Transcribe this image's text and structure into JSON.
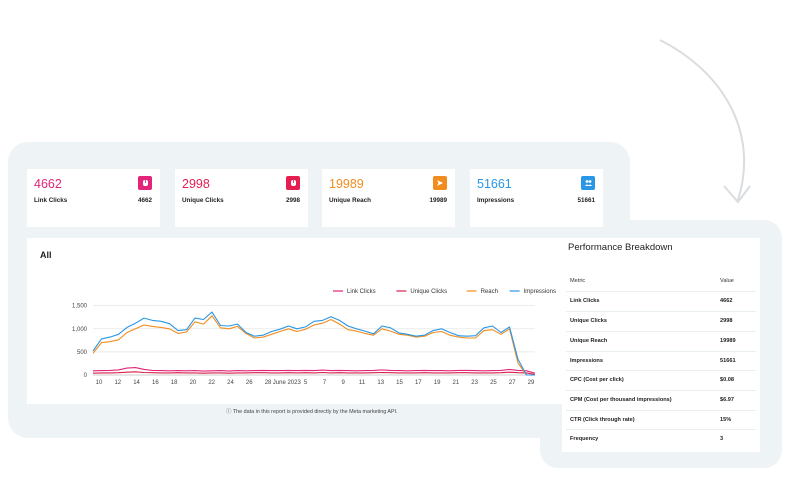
{
  "kpis": [
    {
      "value": "4662",
      "label": "Link Clicks",
      "count": "4662",
      "color": "#e2257a",
      "icon": "cursor-icon"
    },
    {
      "value": "2998",
      "label": "Unique Clicks",
      "count": "2998",
      "color": "#e51e4f",
      "icon": "cursor-icon"
    },
    {
      "value": "19989",
      "label": "Unique Reach",
      "count": "19989",
      "color": "#f28c1e",
      "icon": "send-icon"
    },
    {
      "value": "51661",
      "label": "Impressions",
      "count": "51661",
      "color": "#2996e6",
      "icon": "people-icon"
    }
  ],
  "chart": {
    "title": "All",
    "footnote": "The data in this report is provided directly by the Meta marketing API."
  },
  "chart_data": {
    "type": "line",
    "x_tick_labels": [
      "10",
      "12",
      "14",
      "16",
      "18",
      "20",
      "22",
      "24",
      "26",
      "28",
      "June 2023",
      "5",
      "7",
      "9",
      "11",
      "13",
      "15",
      "17",
      "19",
      "21",
      "23",
      "25",
      "27",
      "29"
    ],
    "y_ticks": [
      "0",
      "500",
      "1,000",
      "1,500"
    ],
    "ylim": [
      0,
      1600
    ],
    "grid": true,
    "legend_position": "top-right",
    "series": [
      {
        "name": "Link Clicks",
        "color": "#e2257a",
        "values": [
          90,
          95,
          100,
          110,
          150,
          160,
          120,
          100,
          95,
          90,
          95,
          90,
          95,
          85,
          90,
          95,
          85,
          95,
          90,
          95,
          100,
          95,
          95,
          100,
          95,
          100,
          95,
          105,
          95,
          100,
          95,
          90,
          95,
          100,
          110,
          100,
          95,
          90,
          95,
          100,
          95,
          95,
          90,
          100,
          100,
          95,
          90,
          95,
          100,
          120,
          100,
          90,
          40
        ]
      },
      {
        "name": "Unique Clicks",
        "color": "#d81f4a",
        "values": [
          40,
          45,
          45,
          50,
          60,
          70,
          55,
          50,
          45,
          45,
          50,
          45,
          45,
          40,
          45,
          45,
          40,
          45,
          45,
          50,
          50,
          45,
          45,
          50,
          45,
          50,
          45,
          55,
          45,
          50,
          45,
          45,
          45,
          50,
          55,
          50,
          45,
          45,
          45,
          50,
          45,
          45,
          45,
          50,
          50,
          45,
          45,
          45,
          50,
          60,
          50,
          45,
          10
        ]
      },
      {
        "name": "Reach",
        "color": "#f28c1e",
        "values": [
          470,
          700,
          720,
          760,
          920,
          1000,
          1080,
          1050,
          1030,
          1000,
          900,
          930,
          1150,
          1100,
          1280,
          1020,
          1000,
          1050,
          900,
          800,
          820,
          880,
          940,
          1000,
          940,
          990,
          1080,
          1120,
          1200,
          1100,
          980,
          950,
          900,
          860,
          1000,
          950,
          880,
          860,
          820,
          840,
          920,
          940,
          860,
          820,
          800,
          800,
          960,
          980,
          880,
          1000,
          260,
          0,
          0
        ]
      },
      {
        "name": "Impressions",
        "color": "#2996e6",
        "values": [
          520,
          780,
          820,
          880,
          1030,
          1120,
          1230,
          1180,
          1160,
          1110,
          960,
          980,
          1230,
          1200,
          1360,
          1070,
          1060,
          1100,
          920,
          840,
          860,
          940,
          990,
          1060,
          1000,
          1040,
          1160,
          1180,
          1260,
          1180,
          1060,
          1000,
          950,
          890,
          1060,
          1020,
          910,
          880,
          840,
          860,
          960,
          1000,
          920,
          850,
          840,
          850,
          1020,
          1060,
          920,
          1040,
          340,
          0,
          0
        ]
      }
    ]
  },
  "breakdown": {
    "title": "Performance Breakdown",
    "headers": {
      "metric": "Metric",
      "value": "Value"
    },
    "rows": [
      {
        "metric": "Link Clicks",
        "value": "4662"
      },
      {
        "metric": "Unique Clicks",
        "value": "2998"
      },
      {
        "metric": "Unique Reach",
        "value": "19989"
      },
      {
        "metric": "Impressions",
        "value": "51661"
      },
      {
        "metric": "CPC (Cost per click)",
        "value": "$0.08"
      },
      {
        "metric": "CPM (Cost per thousand impressions)",
        "value": "$6.97"
      },
      {
        "metric": "CTR (Click through rate)",
        "value": "15%"
      },
      {
        "metric": "Frequency",
        "value": "3"
      }
    ]
  }
}
